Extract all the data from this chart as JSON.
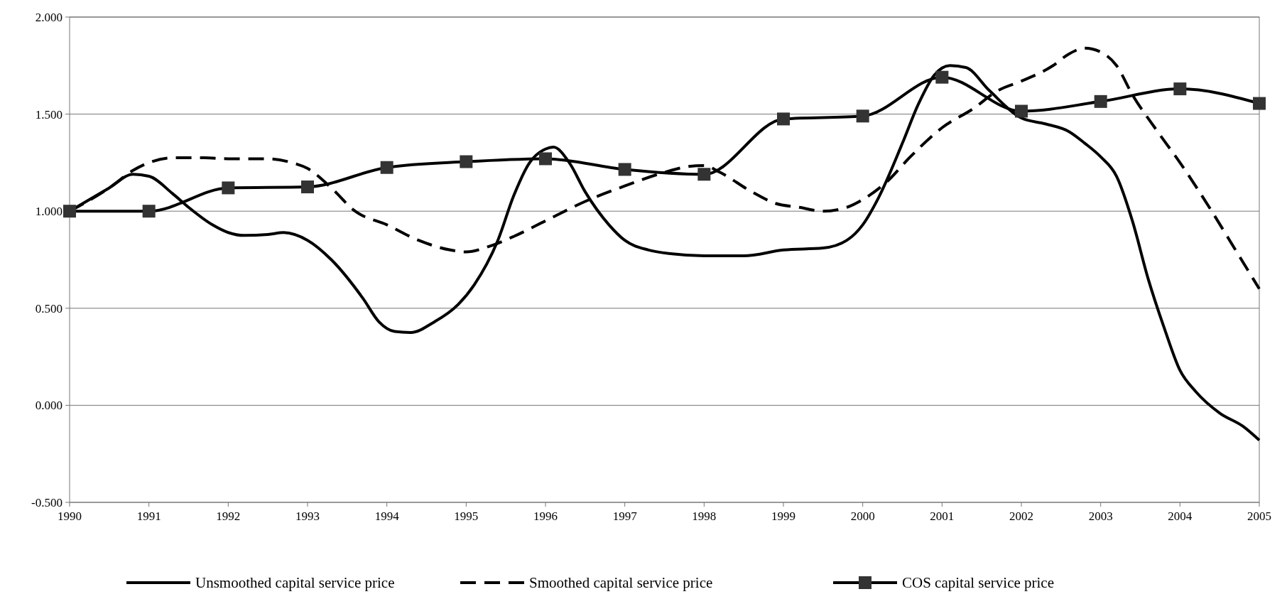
{
  "chart_data": {
    "type": "line",
    "xlim": [
      1990,
      2005
    ],
    "xticks": [
      1990,
      1991,
      1992,
      1993,
      1994,
      1995,
      1996,
      1997,
      1998,
      1999,
      2000,
      2001,
      2002,
      2003,
      2004,
      2005
    ],
    "ylim": [
      -0.5,
      2
    ],
    "yticks": [
      {
        "value": -0.5,
        "label": "-0.500"
      },
      {
        "value": 0,
        "label": "0.000"
      },
      {
        "value": 0.5,
        "label": "0.500"
      },
      {
        "value": 1,
        "label": "1.000"
      },
      {
        "value": 1.5,
        "label": "1.500"
      },
      {
        "value": 2,
        "label": "2.000"
      }
    ],
    "grid": "y",
    "legend": "bottom",
    "series": [
      {
        "name": "Unsmoothed capital service price",
        "color": "#000000",
        "line_style": "solid",
        "marker": "none",
        "x": [
          1990,
          1990.5,
          1990.8,
          1991,
          1991.3,
          1991.5,
          1991.8,
          1992,
          1992.2,
          1992.5,
          1992.7,
          1993,
          1993.3,
          1993.7,
          1993.9,
          1994.1,
          1994.3,
          1994.6,
          1994.9,
          1995.1,
          1995.4,
          1995.6,
          1995.8,
          1996,
          1996.1,
          1996.3,
          1996.5,
          1996.8,
          1997,
          1997.3,
          1997.6,
          1998,
          1998.5,
          1999,
          1999.5,
          1999.8,
          2000,
          2000.2,
          2000.5,
          2000.7,
          2000.9,
          2001.1,
          2001.3,
          2001.6,
          2002,
          2002.3,
          2002.6,
          2002.8,
          2003,
          2003.2,
          2003.4,
          2003.6,
          2003.8,
          2004,
          2004.2,
          2004.5,
          2004.8,
          2005
        ],
        "values": [
          1.0,
          1.12,
          1.19,
          1.18,
          1.09,
          1.02,
          0.93,
          0.89,
          0.875,
          0.88,
          0.89,
          0.85,
          0.75,
          0.55,
          0.43,
          0.38,
          0.375,
          0.43,
          0.52,
          0.62,
          0.85,
          1.08,
          1.25,
          1.32,
          1.33,
          1.25,
          1.1,
          0.93,
          0.85,
          0.8,
          0.78,
          0.77,
          0.77,
          0.8,
          0.81,
          0.85,
          0.93,
          1.07,
          1.35,
          1.55,
          1.7,
          1.75,
          1.74,
          1.62,
          1.48,
          1.45,
          1.41,
          1.35,
          1.28,
          1.18,
          0.95,
          0.65,
          0.4,
          0.18,
          0.07,
          -0.04,
          -0.11,
          -0.18
        ]
      },
      {
        "name": "Smoothed capital service price",
        "color": "#000000",
        "line_style": "dashed",
        "marker": "none",
        "x": [
          1990,
          1990.5,
          1990.8,
          1991,
          1991.3,
          1991.7,
          1992,
          1992.5,
          1992.8,
          1993,
          1993.3,
          1993.6,
          1994,
          1994.4,
          1994.8,
          1995,
          1995.3,
          1995.6,
          1996,
          1996.5,
          1997,
          1997.5,
          1997.8,
          1998,
          1998.2,
          1998.6,
          1998.9,
          1999.2,
          1999.5,
          1999.8,
          2000,
          2000.3,
          2000.6,
          2001,
          2001.4,
          2001.7,
          2002,
          2002.4,
          2002.6,
          2002.8,
          2003,
          2003.2,
          2003.4,
          2003.7,
          2004,
          2004.4,
          2004.7,
          2005
        ],
        "values": [
          1.0,
          1.12,
          1.21,
          1.25,
          1.275,
          1.275,
          1.27,
          1.27,
          1.25,
          1.22,
          1.12,
          1.0,
          0.93,
          0.85,
          0.8,
          0.79,
          0.82,
          0.87,
          0.95,
          1.05,
          1.13,
          1.2,
          1.23,
          1.235,
          1.2,
          1.1,
          1.04,
          1.02,
          1.0,
          1.02,
          1.06,
          1.15,
          1.28,
          1.43,
          1.53,
          1.62,
          1.67,
          1.75,
          1.81,
          1.84,
          1.82,
          1.75,
          1.6,
          1.42,
          1.25,
          1.0,
          0.8,
          0.6
        ]
      },
      {
        "name": "COS capital service price",
        "color": "#000000",
        "line_style": "solid",
        "marker": "square",
        "x": [
          1990,
          1991,
          1992,
          1993,
          1994,
          1995,
          1996,
          1997,
          1998,
          1999,
          2000,
          2001,
          2002,
          2003,
          2004,
          2005
        ],
        "values": [
          1.0,
          1.0,
          1.12,
          1.125,
          1.225,
          1.255,
          1.27,
          1.215,
          1.19,
          1.475,
          1.49,
          1.69,
          1.515,
          1.565,
          1.63,
          1.555
        ]
      }
    ]
  }
}
